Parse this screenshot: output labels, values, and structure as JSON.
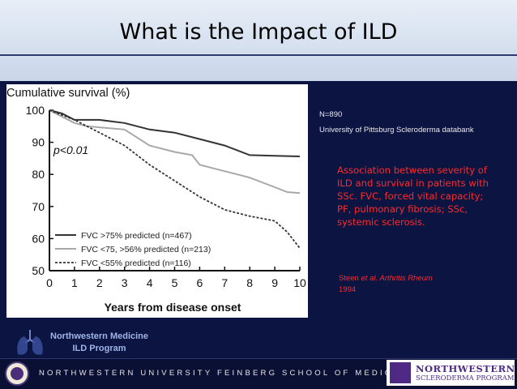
{
  "slide": {
    "title": "What is the Impact of ILD",
    "n_label": "N=890",
    "source": "University of Pittsburg Scleroderma databank",
    "association": "Association between severity of ILD and survival in patients with SSc. FVC, forced vital capacity; PF, pulmonary fibrosis; SSc, systemic sclerosis.",
    "citation_authors": "Steen ",
    "citation_journal": "et al. Arthritis Rheum",
    "citation_year": "1994",
    "program_line1": "Northwestern Medicine",
    "program_line2": "ILD Program",
    "footer": "NORTHWESTERN UNIVERSITY FEINBERG SCHOOL OF MEDICINE",
    "logo_line1": "NORTHWESTERN",
    "logo_line2": "SCLERODERMA PROGRAM"
  },
  "chart_data": {
    "type": "line",
    "title": "Cumulative survival (%)",
    "xlabel": "Years from disease onset",
    "ylabel": "Cumulative survival (%)",
    "annotation": "p<0.01",
    "xlim": [
      0,
      10
    ],
    "ylim": [
      50,
      100
    ],
    "xticks": [
      0,
      1,
      2,
      3,
      4,
      5,
      6,
      7,
      8,
      9,
      10
    ],
    "yticks": [
      50,
      60,
      70,
      80,
      90,
      100
    ],
    "legend_position": "bottom-left",
    "series": [
      {
        "name": "FVC >75% predicted (n=467)",
        "style": "solid-dark",
        "color": "#333333",
        "points": [
          [
            0,
            100
          ],
          [
            0.5,
            99
          ],
          [
            1,
            97
          ],
          [
            2,
            97
          ],
          [
            3,
            96
          ],
          [
            4,
            94
          ],
          [
            5,
            93
          ],
          [
            6,
            91
          ],
          [
            7,
            89
          ],
          [
            8,
            86
          ],
          [
            9,
            85.8
          ],
          [
            10,
            85.6
          ]
        ]
      },
      {
        "name": "FVC <75, >56% predicted (n=213)",
        "style": "solid-light",
        "color": "#a8a8a8",
        "points": [
          [
            0,
            100
          ],
          [
            1,
            96
          ],
          [
            1.5,
            95
          ],
          [
            3,
            94
          ],
          [
            4,
            89
          ],
          [
            5,
            87
          ],
          [
            5.7,
            86
          ],
          [
            6,
            83
          ],
          [
            6.5,
            82
          ],
          [
            7.5,
            80
          ],
          [
            8,
            79
          ],
          [
            9,
            76
          ],
          [
            9.5,
            74.5
          ],
          [
            10,
            74.2
          ]
        ]
      },
      {
        "name": "FVC <55% predicted (n=116)",
        "style": "dashed",
        "color": "#333333",
        "points": [
          [
            0,
            100
          ],
          [
            1,
            97
          ],
          [
            2,
            93
          ],
          [
            3,
            89
          ],
          [
            4,
            83
          ],
          [
            5,
            78
          ],
          [
            6,
            73
          ],
          [
            7,
            69
          ],
          [
            8,
            67
          ],
          [
            9,
            65.5
          ],
          [
            9.5,
            62
          ],
          [
            10,
            57
          ]
        ]
      }
    ]
  }
}
